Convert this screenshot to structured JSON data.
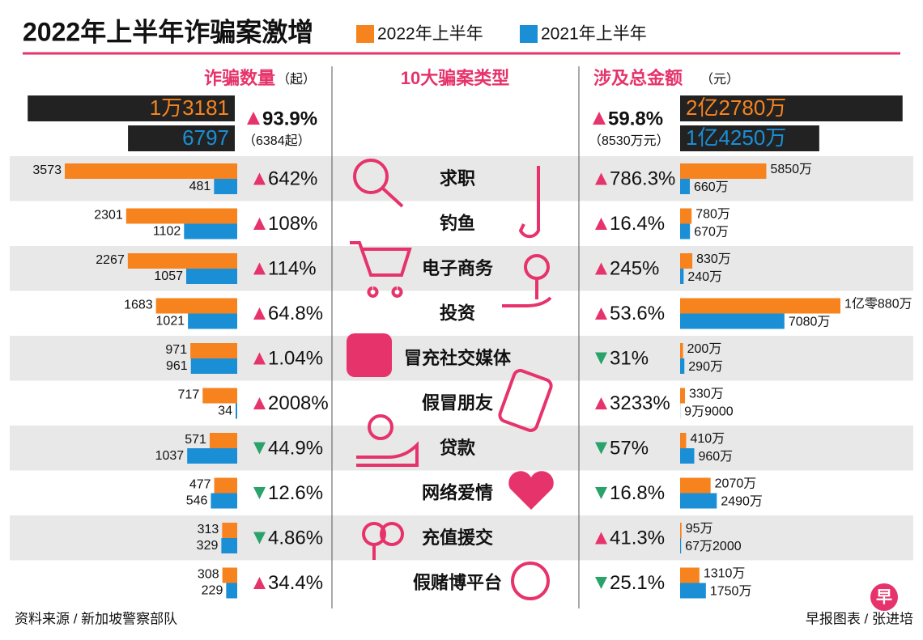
{
  "title": "2022年上半年诈骗案激增",
  "legend": [
    {
      "label": "2022年上半年",
      "color": "#f7831f"
    },
    {
      "label": "2021年上半年",
      "color": "#1a8fd6"
    }
  ],
  "count_header": {
    "title": "诈骗数量",
    "unit": "（起）"
  },
  "types_header": "10大骗案类型",
  "amount_header": {
    "title": "涉及总金额",
    "unit": "（元）"
  },
  "totals": {
    "count_2022": {
      "value": 13181,
      "label": "1万3181"
    },
    "count_2021": 6797,
    "count_change": "93.9%",
    "count_direction": "up",
    "count_diff": "（6384起）",
    "amount_2022": {
      "value": 22780,
      "label": "2亿2780万"
    },
    "amount_2021": {
      "value": 14250,
      "label": "1亿4250万"
    },
    "amount_change": "59.8%",
    "amount_direction": "up",
    "amount_diff": "（8530万元）"
  },
  "rows": [
    {
      "type": "求职",
      "count_2022": 3573,
      "count_2021": 481,
      "count_change": "642%",
      "count_direction": "up",
      "amount_2022": {
        "value": 5850,
        "label": "5850万"
      },
      "amount_2021": {
        "value": 660,
        "label": "660万"
      },
      "amount_change": "786.3%",
      "amount_direction": "up"
    },
    {
      "type": "钓鱼",
      "count_2022": 2301,
      "count_2021": 1102,
      "count_change": "108%",
      "count_direction": "up",
      "amount_2022": {
        "value": 780,
        "label": "780万"
      },
      "amount_2021": {
        "value": 670,
        "label": "670万"
      },
      "amount_change": "16.4%",
      "amount_direction": "up"
    },
    {
      "type": "电子商务",
      "count_2022": 2267,
      "count_2021": 1057,
      "count_change": "114%",
      "count_direction": "up",
      "amount_2022": {
        "value": 830,
        "label": "830万"
      },
      "amount_2021": {
        "value": 240,
        "label": "240万"
      },
      "amount_change": "245%",
      "amount_direction": "up"
    },
    {
      "type": "投资",
      "count_2022": 1683,
      "count_2021": 1021,
      "count_change": "64.8%",
      "count_direction": "up",
      "amount_2022": {
        "value": 10880,
        "label": "1亿零880万"
      },
      "amount_2021": {
        "value": 7080,
        "label": "7080万"
      },
      "amount_change": "53.6%",
      "amount_direction": "up"
    },
    {
      "type": "冒充社交媒体",
      "count_2022": 971,
      "count_2021": 961,
      "count_change": "1.04%",
      "count_direction": "up",
      "amount_2022": {
        "value": 200,
        "label": "200万"
      },
      "amount_2021": {
        "value": 290,
        "label": "290万"
      },
      "amount_change": "31%",
      "amount_direction": "down"
    },
    {
      "type": "假冒朋友",
      "count_2022": 717,
      "count_2021": 34,
      "count_change": "2008%",
      "count_direction": "up",
      "amount_2022": {
        "value": 330,
        "label": "330万"
      },
      "amount_2021": {
        "value": 9.9,
        "label": "9万9000"
      },
      "amount_change": "3233%",
      "amount_direction": "up"
    },
    {
      "type": "贷款",
      "count_2022": 571,
      "count_2021": 1037,
      "count_change": "44.9%",
      "count_direction": "down",
      "amount_2022": {
        "value": 410,
        "label": "410万"
      },
      "amount_2021": {
        "value": 960,
        "label": "960万"
      },
      "amount_change": "57%",
      "amount_direction": "down"
    },
    {
      "type": "网络爱情",
      "count_2022": 477,
      "count_2021": 546,
      "count_change": "12.6%",
      "count_direction": "down",
      "amount_2022": {
        "value": 2070,
        "label": "2070万"
      },
      "amount_2021": {
        "value": 2490,
        "label": "2490万"
      },
      "amount_change": "16.8%",
      "amount_direction": "down"
    },
    {
      "type": "充值援交",
      "count_2022": 313,
      "count_2021": 329,
      "count_change": "4.86%",
      "count_direction": "down",
      "amount_2022": {
        "value": 95,
        "label": "95万"
      },
      "amount_2021": {
        "value": 67.2,
        "label": "67万2000"
      },
      "amount_change": "41.3%",
      "amount_direction": "up"
    },
    {
      "type": "假赌博平台",
      "count_2022": 308,
      "count_2021": 229,
      "count_change": "34.4%",
      "count_direction": "up",
      "amount_2022": {
        "value": 1310,
        "label": "1310万"
      },
      "amount_2021": {
        "value": 1750,
        "label": "1750万"
      },
      "amount_change": "25.1%",
      "amount_direction": "down"
    }
  ],
  "source": "资料来源 / 新加坡警察部队",
  "credit": "早报图表 / 张进培",
  "logo": "早"
}
